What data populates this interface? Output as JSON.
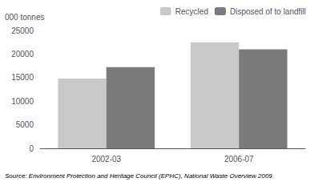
{
  "chart_data": {
    "type": "bar",
    "ylabel": "000 tonnes",
    "annotations": [
      "Source: Environment Protection and Heritage Council (EPHC), National Waste Overview 2009"
    ],
    "categories": [
      "2002-03",
      "2006-07"
    ],
    "series": [
      {
        "name": "Recycled",
        "color": "#c9c9c9",
        "values": [
          14800,
          22500
        ]
      },
      {
        "name": "Disposed of to landfill",
        "color": "#7a7a7a",
        "values": [
          17200,
          21000
        ]
      }
    ],
    "ylim": [
      0,
      25000
    ],
    "yticks": [
      0,
      5000,
      10000,
      15000,
      20000,
      25000
    ],
    "grid": false,
    "legend": "top"
  }
}
